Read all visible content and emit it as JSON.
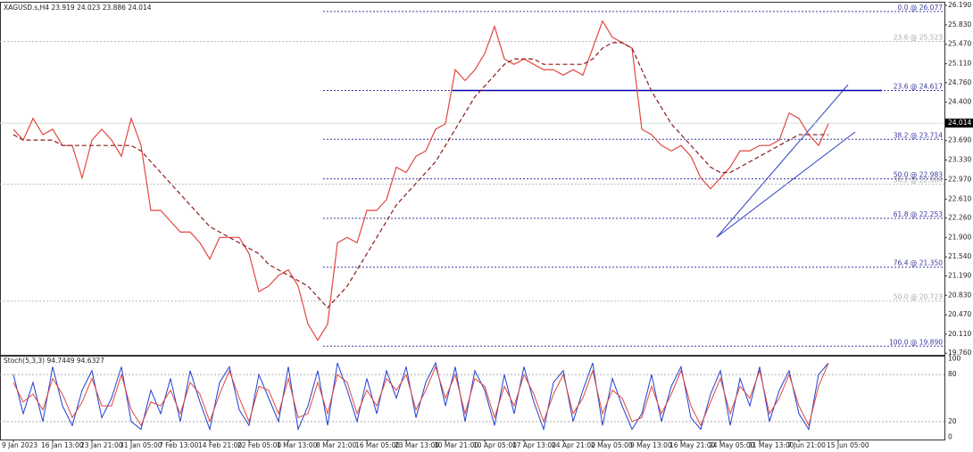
{
  "chart_data": {
    "type": "line",
    "title": "XAGUSD.s,H4  23.919 24.023 23.886 24.014",
    "categories": [
      "9 Jan 2023",
      null,
      null,
      null,
      "16 Jan 13:00",
      null,
      null,
      null,
      "23 Jan 21:00",
      null,
      null,
      null,
      "31 Jan 05:00",
      null,
      null,
      null,
      "7 Feb 13:00",
      null,
      null,
      null,
      "14 Feb 21:00",
      null,
      null,
      null,
      "22 Feb 05:00",
      null,
      null,
      null,
      "1 Mar 13:00",
      null,
      null,
      null,
      "8 Mar 21:00",
      null,
      null,
      null,
      "16 Mar 05:00",
      null,
      null,
      null,
      "23 Mar 13:00",
      null,
      null,
      null,
      "30 Mar 21:00",
      null,
      null,
      null,
      "10 Apr 05:00",
      null,
      null,
      null,
      "17 Apr 13:00",
      null,
      null,
      null,
      "24 Apr 21:00",
      null,
      null,
      null,
      "2 May 05:00",
      null,
      null,
      null,
      "9 May 13:00",
      null,
      null,
      null,
      "16 May 21:00",
      null,
      null,
      null,
      "24 May 05:00",
      null,
      null,
      null,
      "31 May 13:00",
      null,
      null,
      null,
      "7 Jun 21:00",
      null,
      null,
      null,
      "15 Jun 05:00"
    ],
    "series": [
      {
        "color": "#e0473f",
        "values": [
          23.9,
          23.7,
          24.1,
          23.8,
          23.9,
          23.6,
          23.6,
          23.0,
          23.7,
          23.9,
          23.7,
          23.4,
          24.1,
          23.6,
          22.4,
          22.4,
          22.2,
          22.0,
          22.0,
          21.8,
          21.5,
          21.9,
          21.9,
          21.9,
          21.6,
          20.9,
          21.0,
          21.2,
          21.3,
          21.0,
          20.3,
          20.0,
          20.3,
          21.8,
          21.9,
          21.8,
          22.4,
          22.4,
          22.6,
          23.2,
          23.1,
          23.4,
          23.5,
          23.9,
          24.0,
          25.0,
          24.8,
          25.0,
          25.3,
          25.8,
          25.2,
          25.1,
          25.2,
          25.1,
          25.0,
          25.0,
          24.9,
          25.0,
          24.9,
          25.4,
          25.9,
          25.6,
          25.5,
          25.4,
          23.9,
          23.8,
          23.6,
          23.5,
          23.6,
          23.4,
          23.0,
          22.8,
          23.0,
          23.2,
          23.5,
          23.5,
          23.6,
          23.6,
          23.7,
          24.2,
          24.1,
          23.8,
          23.6,
          24.0,
          null
        ]
      },
      {
        "color": "#8b1a1a",
        "dashed": true,
        "values": [
          23.8,
          23.7,
          23.7,
          23.7,
          23.7,
          23.6,
          23.6,
          23.6,
          23.6,
          23.6,
          23.6,
          23.6,
          23.6,
          23.5,
          23.3,
          23.1,
          22.9,
          22.7,
          22.5,
          22.3,
          22.1,
          22.0,
          21.9,
          21.8,
          21.7,
          21.6,
          21.4,
          21.3,
          21.2,
          21.1,
          21.0,
          20.8,
          20.6,
          20.8,
          21.0,
          21.3,
          21.6,
          21.9,
          22.2,
          22.5,
          22.7,
          22.9,
          23.1,
          23.3,
          23.6,
          23.9,
          24.2,
          24.5,
          24.7,
          24.9,
          25.1,
          25.2,
          25.2,
          25.2,
          25.1,
          25.1,
          25.1,
          25.1,
          25.1,
          25.2,
          25.4,
          25.5,
          25.5,
          25.4,
          25.0,
          24.6,
          24.3,
          24.0,
          23.8,
          23.6,
          23.4,
          23.2,
          23.1,
          23.1,
          23.2,
          23.3,
          23.4,
          23.5,
          23.6,
          23.7,
          23.8,
          23.8,
          23.8,
          23.8,
          null
        ]
      }
    ],
    "ylim": [
      19.73,
      26.24
    ],
    "yticks": [
      {
        "value": 26.19,
        "label": "26.190"
      },
      {
        "value": 25.83,
        "label": "25.830"
      },
      {
        "value": 25.47,
        "label": "25.470"
      },
      {
        "value": 25.11,
        "label": "25.110"
      },
      {
        "value": 24.76,
        "label": "24.760"
      },
      {
        "value": 24.4,
        "label": "24.400"
      },
      {
        "value": 23.69,
        "label": "23.690"
      },
      {
        "value": 23.33,
        "label": "23.330"
      },
      {
        "value": 22.97,
        "label": "22.970"
      },
      {
        "value": 22.61,
        "label": "22.610"
      },
      {
        "value": 22.26,
        "label": "22.260"
      },
      {
        "value": 21.9,
        "label": "21.900"
      },
      {
        "value": 21.54,
        "label": "21.540"
      },
      {
        "value": 21.19,
        "label": "21.190"
      },
      {
        "value": 20.83,
        "label": "20.830"
      },
      {
        "value": 20.47,
        "label": "20.470"
      },
      {
        "value": 20.11,
        "label": "20.110"
      },
      {
        "value": 19.76,
        "label": "19.760"
      }
    ],
    "current": {
      "value": 24.014,
      "label": "24.014"
    },
    "fib": [
      {
        "value": 26.077,
        "label": "0.0 @ 26.077"
      },
      {
        "value": 24.617,
        "label": "23.6 @ 24.617"
      },
      {
        "value": 23.714,
        "label": "38.2 @ 23.714"
      },
      {
        "value": 22.983,
        "label": "50.0 @ 22.983"
      },
      {
        "value": 22.253,
        "label": "61.8 @ 22.253"
      },
      {
        "value": 21.35,
        "label": "76.4 @ 21.350"
      },
      {
        "value": 19.89,
        "label": "100.0 @ 19.890"
      }
    ],
    "fib_faint": [
      {
        "value": 25.523,
        "label": "23.6 @ 25.523"
      },
      {
        "value": 22.884,
        "label": "38.2 @ 22.884"
      },
      {
        "value": 20.723,
        "label": "50.0 @ 20.723"
      }
    ],
    "hline": {
      "value": 24.617,
      "color": "#0000b0"
    },
    "stoch": {
      "title": "Stoch(5,3,3) 94.7449 94.6327",
      "ylim": [
        -3,
        103
      ],
      "yticks": [
        100,
        80,
        20,
        0
      ],
      "series": [
        {
          "color": "#1f3fd0",
          "values": [
            80,
            30,
            70,
            20,
            90,
            40,
            15,
            60,
            85,
            25,
            50,
            90,
            20,
            10,
            60,
            30,
            75,
            20,
            85,
            45,
            10,
            70,
            90,
            35,
            15,
            80,
            50,
            20,
            90,
            10,
            40,
            85,
            15,
            95,
            60,
            20,
            75,
            30,
            85,
            50,
            90,
            25,
            70,
            95,
            40,
            90,
            20,
            85,
            60,
            15,
            80,
            30,
            90,
            45,
            10,
            70,
            85,
            20,
            60,
            95,
            15,
            75,
            40,
            10,
            30,
            80,
            20,
            65,
            90,
            25,
            10,
            55,
            85,
            15,
            75,
            40,
            90,
            20,
            60,
            85,
            30,
            10,
            80,
            94.7449,
            null
          ]
        },
        {
          "color": "#e0473f",
          "values": [
            70,
            45,
            55,
            35,
            75,
            55,
            25,
            45,
            75,
            40,
            40,
            80,
            35,
            15,
            45,
            40,
            60,
            30,
            70,
            55,
            20,
            55,
            85,
            50,
            20,
            65,
            60,
            30,
            75,
            25,
            30,
            70,
            30,
            80,
            70,
            30,
            60,
            40,
            75,
            60,
            80,
            35,
            60,
            90,
            50,
            80,
            30,
            75,
            65,
            25,
            65,
            40,
            80,
            55,
            20,
            55,
            80,
            30,
            50,
            85,
            30,
            60,
            50,
            20,
            25,
            65,
            30,
            55,
            85,
            40,
            15,
            45,
            75,
            30,
            65,
            50,
            85,
            30,
            50,
            80,
            40,
            15,
            65,
            94.6327,
            null
          ]
        }
      ]
    }
  }
}
